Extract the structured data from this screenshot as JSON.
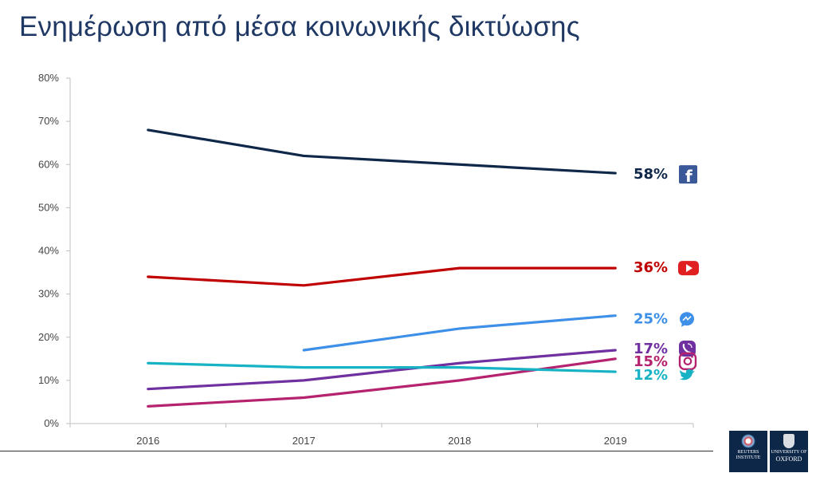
{
  "title": "Ενημέρωση από μέσα κοινωνικής δικτύωσης",
  "chart_data": {
    "type": "line",
    "categories": [
      "2016",
      "2017",
      "2018",
      "2019"
    ],
    "yticks": [
      "0%",
      "10%",
      "20%",
      "30%",
      "40%",
      "50%",
      "60%",
      "70%",
      "80%"
    ],
    "ylim": [
      0,
      80
    ],
    "grid": false,
    "series": [
      {
        "label": "58%",
        "icon": "facebook-icon",
        "color": "#0f2849",
        "values": [
          68,
          62,
          60,
          58
        ]
      },
      {
        "label": "36%",
        "icon": "youtube-icon",
        "color": "#c00000",
        "values": [
          34,
          32,
          36,
          36
        ]
      },
      {
        "label": "25%",
        "icon": "messenger-icon",
        "color": "#3d8fe8",
        "values": [
          null,
          17,
          22,
          25
        ]
      },
      {
        "label": "17%",
        "icon": "viber-icon",
        "color": "#7030a0",
        "values": [
          8,
          10,
          14,
          17
        ]
      },
      {
        "label": "15%",
        "icon": "instagram-icon",
        "color": "#b5236e",
        "values": [
          4,
          6,
          10,
          15
        ]
      },
      {
        "label": "12%",
        "icon": "twitter-icon",
        "color": "#17b3c5",
        "values": [
          14,
          13,
          13,
          12
        ]
      }
    ]
  },
  "logos": {
    "reuters": {
      "line1": "REUTERS",
      "line2": "INSTITUTE"
    },
    "oxford": {
      "line1": "UNIVERSITY OF",
      "line2": "OXFORD"
    }
  }
}
